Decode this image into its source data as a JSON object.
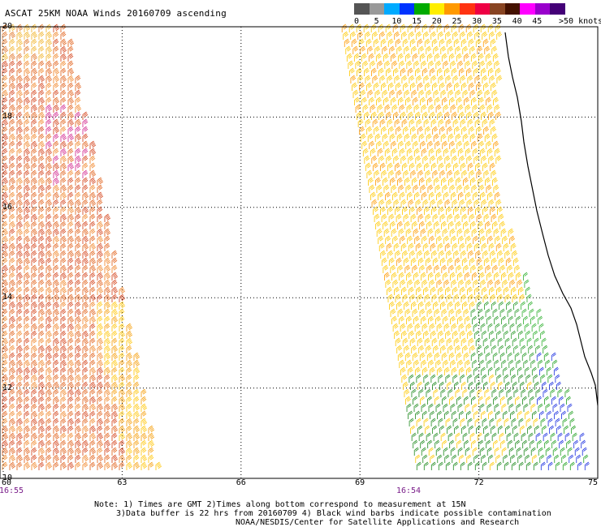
{
  "title": "ASCAT 25KM NOAA Winds 20160709 ascending",
  "legend": {
    "units": ">50 knots",
    "labels": [
      "0",
      "5",
      "10",
      "15",
      "20",
      "25",
      "30",
      "35",
      "40",
      "45"
    ],
    "colors": [
      "#555555",
      "#999999",
      "#00aaff",
      "#0033ff",
      "#00aa00",
      "#ffee00",
      "#ff9900",
      "#ff3311",
      "#ee0044",
      "#884422",
      "#441100",
      "#ff00ff",
      "#9900cc",
      "#440077"
    ]
  },
  "axes": {
    "lon_labels": [
      "60",
      "63",
      "66",
      "69",
      "72",
      "75"
    ],
    "lat_labels": [
      "20",
      "18",
      "16",
      "14",
      "12",
      "10"
    ],
    "lon_range": [
      60,
      75
    ],
    "lat_range": [
      10,
      20
    ],
    "grid": true
  },
  "pass_times": [
    "16:55",
    "16:54"
  ],
  "notes": [
    "Note: 1) Times are GMT 2)Times along bottom correspond to measurement at 15N",
    "3)Data buffer is 22 hrs from 20160709 4) Black wind barbs indicate possible contamination",
    "NOAA/NESDIS/Center for Satellite Applications and Research"
  ],
  "swaths": [
    {
      "name": "west",
      "typical_speed_knots": 27,
      "color_band": "orange-red"
    },
    {
      "name": "east",
      "typical_speed_knots": 22,
      "color_band": "yellow-green"
    }
  ]
}
